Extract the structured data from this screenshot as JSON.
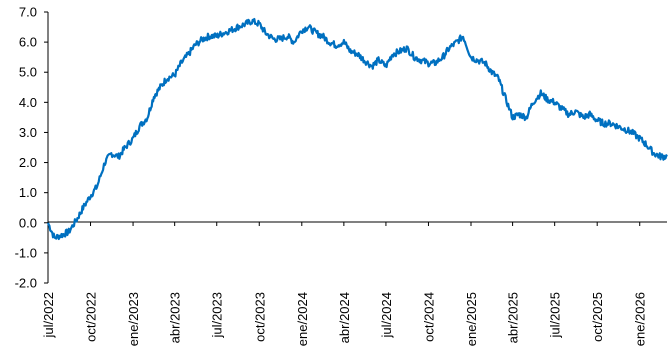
{
  "chart_data": {
    "type": "line",
    "title": "",
    "xlabel": "",
    "ylabel": "",
    "ylim": [
      -2.0,
      7.0
    ],
    "yticks": [
      "7.0",
      "6.0",
      "5.0",
      "4.0",
      "3.0",
      "2.0",
      "1.0",
      "0.0",
      "-1.0",
      "-2.0"
    ],
    "xtick_labels": [
      "jul/2022",
      "oct/2022",
      "ene/2023",
      "abr/2023",
      "jul/2023",
      "oct/2023",
      "ene/2024",
      "abr/2024",
      "jul/2024",
      "oct/2024",
      "ene/2025",
      "abr/2025",
      "jul/2025",
      "oct/2025",
      "ene/2026"
    ],
    "line_color": "#0070C0",
    "grid": false,
    "series": [
      {
        "x": [
          "2022-07-01",
          "2022-07-15",
          "2022-08-01",
          "2022-08-15",
          "2022-09-01",
          "2022-09-15",
          "2022-10-01",
          "2022-10-15",
          "2022-11-01",
          "2022-11-15",
          "2022-12-01",
          "2022-12-15",
          "2023-01-01",
          "2023-01-15",
          "2023-02-01",
          "2023-02-15",
          "2023-03-01",
          "2023-03-15",
          "2023-04-01",
          "2023-04-15",
          "2023-05-01",
          "2023-05-15",
          "2023-06-01",
          "2023-06-15",
          "2023-07-01",
          "2023-07-15",
          "2023-08-01",
          "2023-08-15",
          "2023-09-01",
          "2023-09-15",
          "2023-10-01",
          "2023-10-15",
          "2023-11-01",
          "2023-11-15",
          "2023-12-01",
          "2023-12-15",
          "2024-01-01",
          "2024-01-15",
          "2024-02-01",
          "2024-02-15",
          "2024-03-01",
          "2024-03-15",
          "2024-04-01",
          "2024-04-15",
          "2024-05-01",
          "2024-05-15",
          "2024-06-01",
          "2024-06-15",
          "2024-07-01",
          "2024-07-15",
          "2024-08-01",
          "2024-08-15",
          "2024-09-01",
          "2024-09-15",
          "2024-10-01",
          "2024-10-15",
          "2024-11-01",
          "2024-11-15",
          "2024-12-01",
          "2024-12-15",
          "2025-01-01",
          "2025-01-15",
          "2025-02-01",
          "2025-02-15",
          "2025-03-01",
          "2025-03-15",
          "2025-04-01",
          "2025-04-15",
          "2025-05-01",
          "2025-05-15",
          "2025-06-01",
          "2025-06-15",
          "2025-07-01",
          "2025-07-15",
          "2025-08-01",
          "2025-08-15",
          "2025-09-01",
          "2025-09-15",
          "2025-10-01",
          "2025-10-15",
          "2025-11-01",
          "2025-11-15",
          "2025-12-01",
          "2025-12-15",
          "2026-01-01",
          "2026-01-15",
          "2026-02-01",
          "2026-02-15",
          "2026-03-01"
        ],
        "values": [
          0.0,
          -0.5,
          -0.4,
          -0.3,
          0.1,
          0.5,
          0.9,
          1.2,
          2.0,
          2.3,
          2.2,
          2.5,
          2.8,
          3.2,
          3.5,
          4.2,
          4.5,
          4.8,
          4.9,
          5.3,
          5.6,
          5.9,
          6.1,
          6.2,
          6.2,
          6.3,
          6.4,
          6.5,
          6.6,
          6.7,
          6.6,
          6.3,
          6.1,
          6.1,
          6.2,
          6.0,
          6.4,
          6.5,
          6.3,
          6.2,
          6.0,
          5.9,
          6.0,
          5.7,
          5.6,
          5.4,
          5.2,
          5.4,
          5.2,
          5.6,
          5.7,
          5.8,
          5.5,
          5.4,
          5.3,
          5.3,
          5.5,
          5.8,
          6.0,
          6.2,
          5.5,
          5.4,
          5.3,
          5.0,
          4.8,
          4.2,
          3.5,
          3.6,
          3.5,
          4.0,
          4.3,
          4.1,
          4.0,
          3.8,
          3.6,
          3.7,
          3.5,
          3.6,
          3.4,
          3.3,
          3.3,
          3.2,
          3.1,
          3.0,
          2.8,
          2.6,
          2.3,
          2.2,
          2.2
        ]
      }
    ]
  }
}
